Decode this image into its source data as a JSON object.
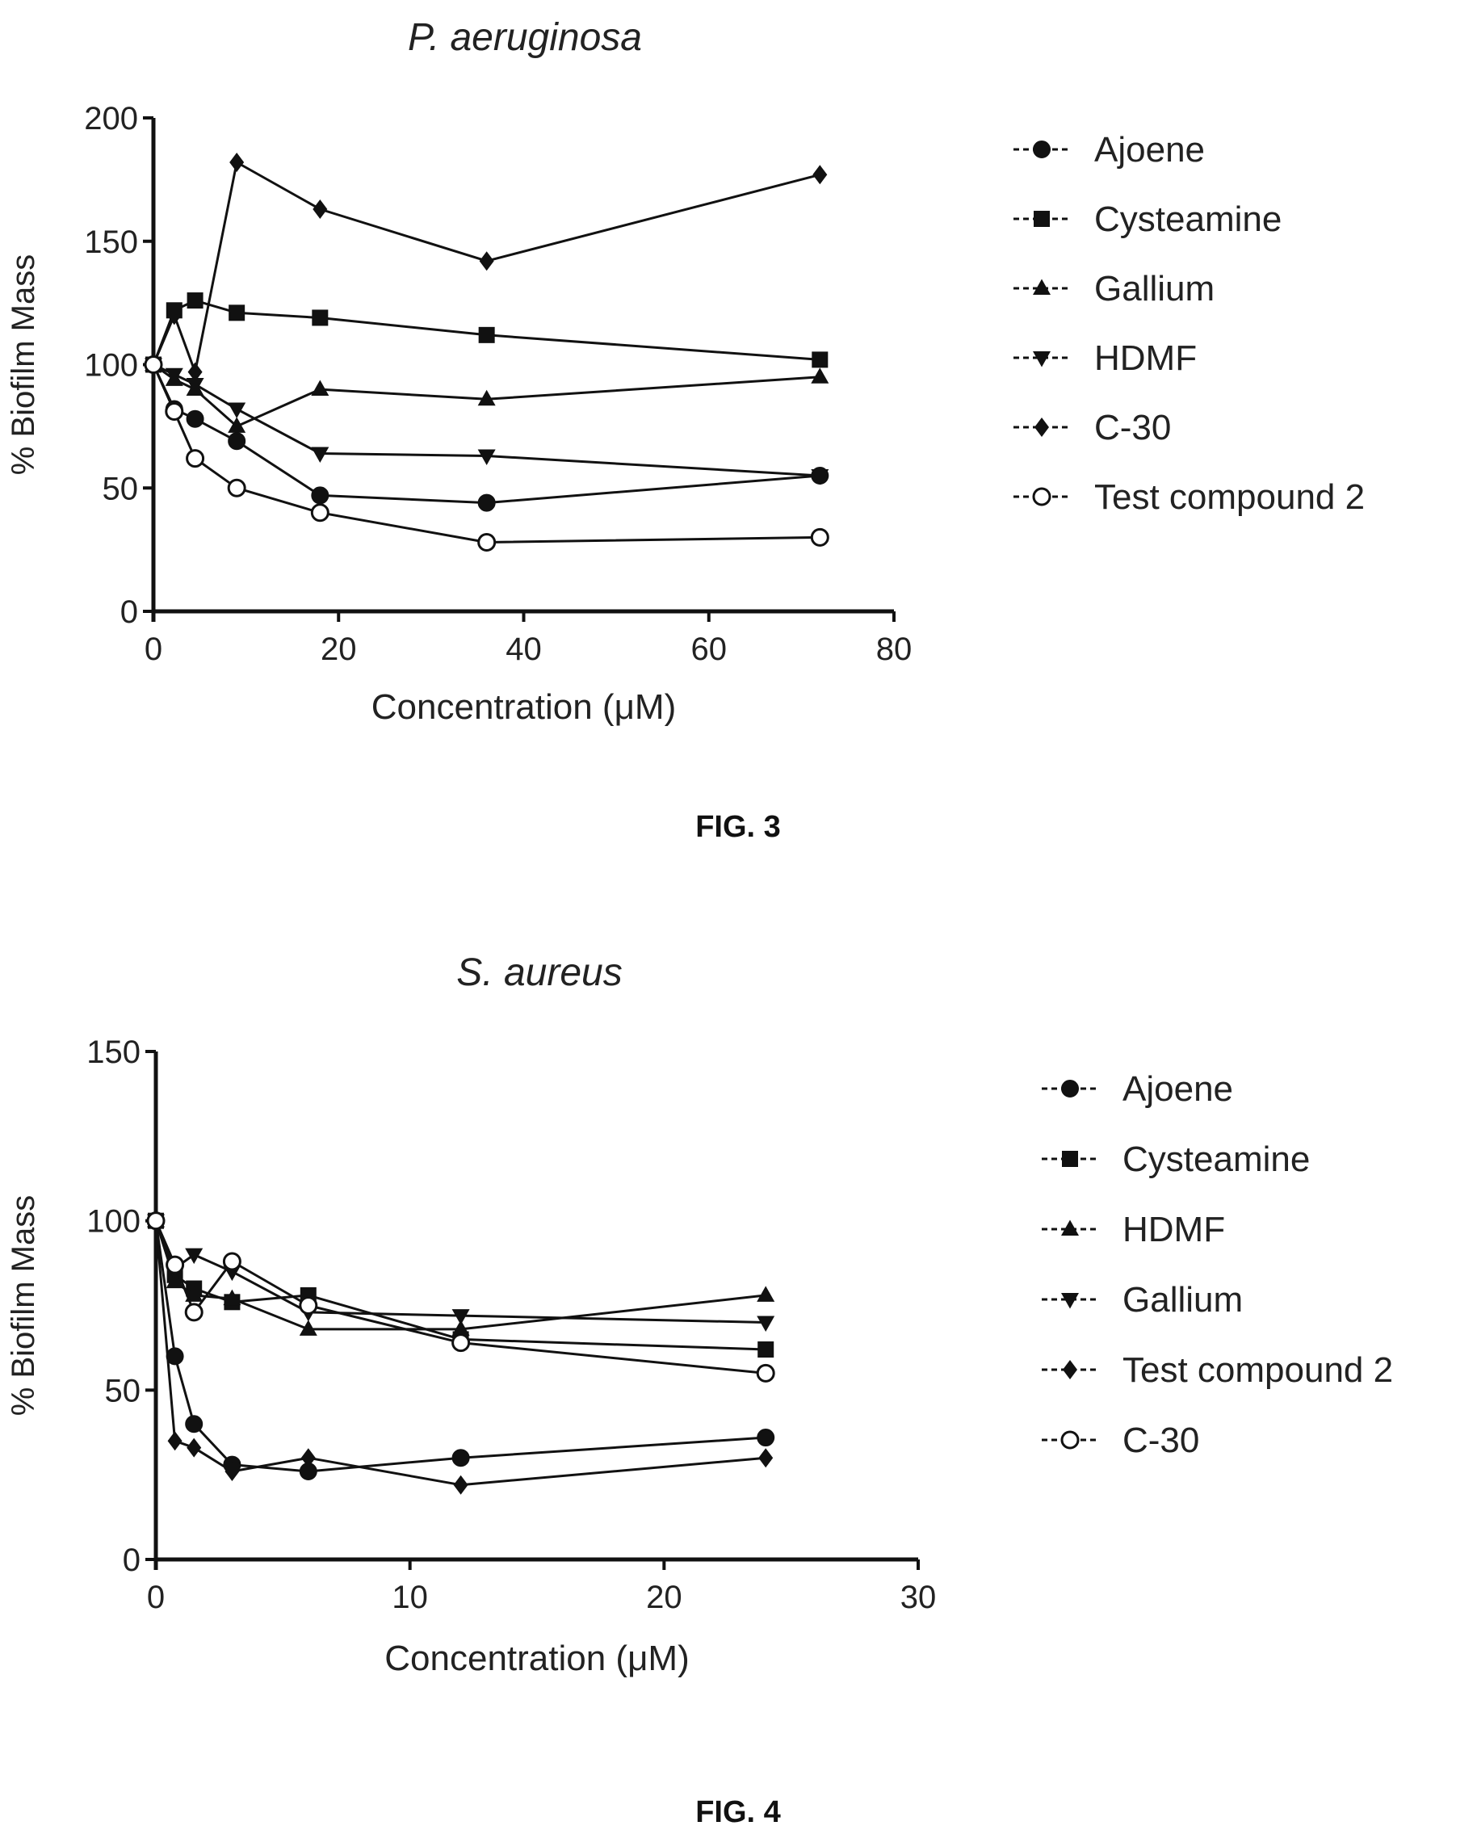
{
  "figures": [
    {
      "caption": "FIG. 3"
    },
    {
      "caption": "FIG. 4"
    }
  ],
  "chart_data": [
    {
      "type": "line",
      "title": "P. aeruginosa",
      "xlabel": "Concentration (μM)",
      "ylabel": "% Biofilm Mass",
      "xlim": [
        0,
        80
      ],
      "ylim": [
        0,
        200
      ],
      "xticks": [
        0,
        20,
        40,
        60,
        80
      ],
      "yticks": [
        0,
        50,
        100,
        150,
        200
      ],
      "grid": false,
      "legend_position": "right",
      "line_color": "#111111",
      "series": [
        {
          "name": "Ajoene",
          "marker": "circle-filled",
          "x": [
            0,
            2.25,
            4.5,
            9,
            18,
            36,
            72
          ],
          "y": [
            100,
            82,
            78,
            69,
            47,
            44,
            55
          ]
        },
        {
          "name": "Cysteamine",
          "marker": "square-filled",
          "x": [
            0,
            2.25,
            4.5,
            9,
            18,
            36,
            72
          ],
          "y": [
            100,
            122,
            126,
            121,
            119,
            112,
            102
          ]
        },
        {
          "name": "Gallium",
          "marker": "triangle-up",
          "x": [
            0,
            2.25,
            4.5,
            9,
            18,
            36,
            72
          ],
          "y": [
            100,
            94,
            90,
            75,
            90,
            86,
            95
          ]
        },
        {
          "name": "HDMF",
          "marker": "triangle-down",
          "x": [
            0,
            2.25,
            4.5,
            9,
            18,
            36,
            72
          ],
          "y": [
            100,
            96,
            92,
            82,
            64,
            63,
            55
          ]
        },
        {
          "name": "C-30",
          "marker": "diamond-filled",
          "x": [
            0,
            2.25,
            4.5,
            9,
            18,
            36,
            72
          ],
          "y": [
            100,
            120,
            97,
            182,
            163,
            142,
            177
          ]
        },
        {
          "name": "Test compound 2",
          "marker": "circle-open",
          "x": [
            0,
            2.25,
            4.5,
            9,
            18,
            36,
            72
          ],
          "y": [
            100,
            81,
            62,
            50,
            40,
            28,
            30
          ]
        }
      ]
    },
    {
      "type": "line",
      "title": "S. aureus",
      "xlabel": "Concentration (μM)",
      "ylabel": "% Biofilm Mass",
      "xlim": [
        0,
        30
      ],
      "ylim": [
        0,
        150
      ],
      "xticks": [
        0,
        10,
        20,
        30
      ],
      "yticks": [
        0,
        50,
        100,
        150
      ],
      "grid": false,
      "legend_position": "right",
      "line_color": "#111111",
      "series": [
        {
          "name": "Ajoene",
          "marker": "circle-filled",
          "x": [
            0,
            0.75,
            1.5,
            3,
            6,
            12,
            24
          ],
          "y": [
            100,
            60,
            40,
            28,
            26,
            30,
            36
          ]
        },
        {
          "name": "Cysteamine",
          "marker": "square-filled",
          "x": [
            0,
            0.75,
            1.5,
            3,
            6,
            12,
            24
          ],
          "y": [
            100,
            84,
            80,
            76,
            78,
            65,
            62
          ]
        },
        {
          "name": "HDMF",
          "marker": "triangle-up",
          "x": [
            0,
            0.75,
            1.5,
            3,
            6,
            12,
            24
          ],
          "y": [
            100,
            82,
            78,
            77,
            68,
            68,
            78
          ]
        },
        {
          "name": "Gallium",
          "marker": "triangle-down",
          "x": [
            0,
            0.75,
            1.5,
            3,
            6,
            12,
            24
          ],
          "y": [
            100,
            86,
            90,
            85,
            73,
            72,
            70
          ]
        },
        {
          "name": "Test compound 2",
          "marker": "diamond-filled",
          "x": [
            0,
            0.75,
            1.5,
            3,
            6,
            12,
            24
          ],
          "y": [
            100,
            35,
            33,
            26,
            30,
            22,
            30
          ]
        },
        {
          "name": "C-30",
          "marker": "circle-open",
          "x": [
            0,
            0.75,
            1.5,
            3,
            6,
            12,
            24
          ],
          "y": [
            100,
            87,
            73,
            88,
            75,
            64,
            55
          ]
        }
      ]
    }
  ]
}
